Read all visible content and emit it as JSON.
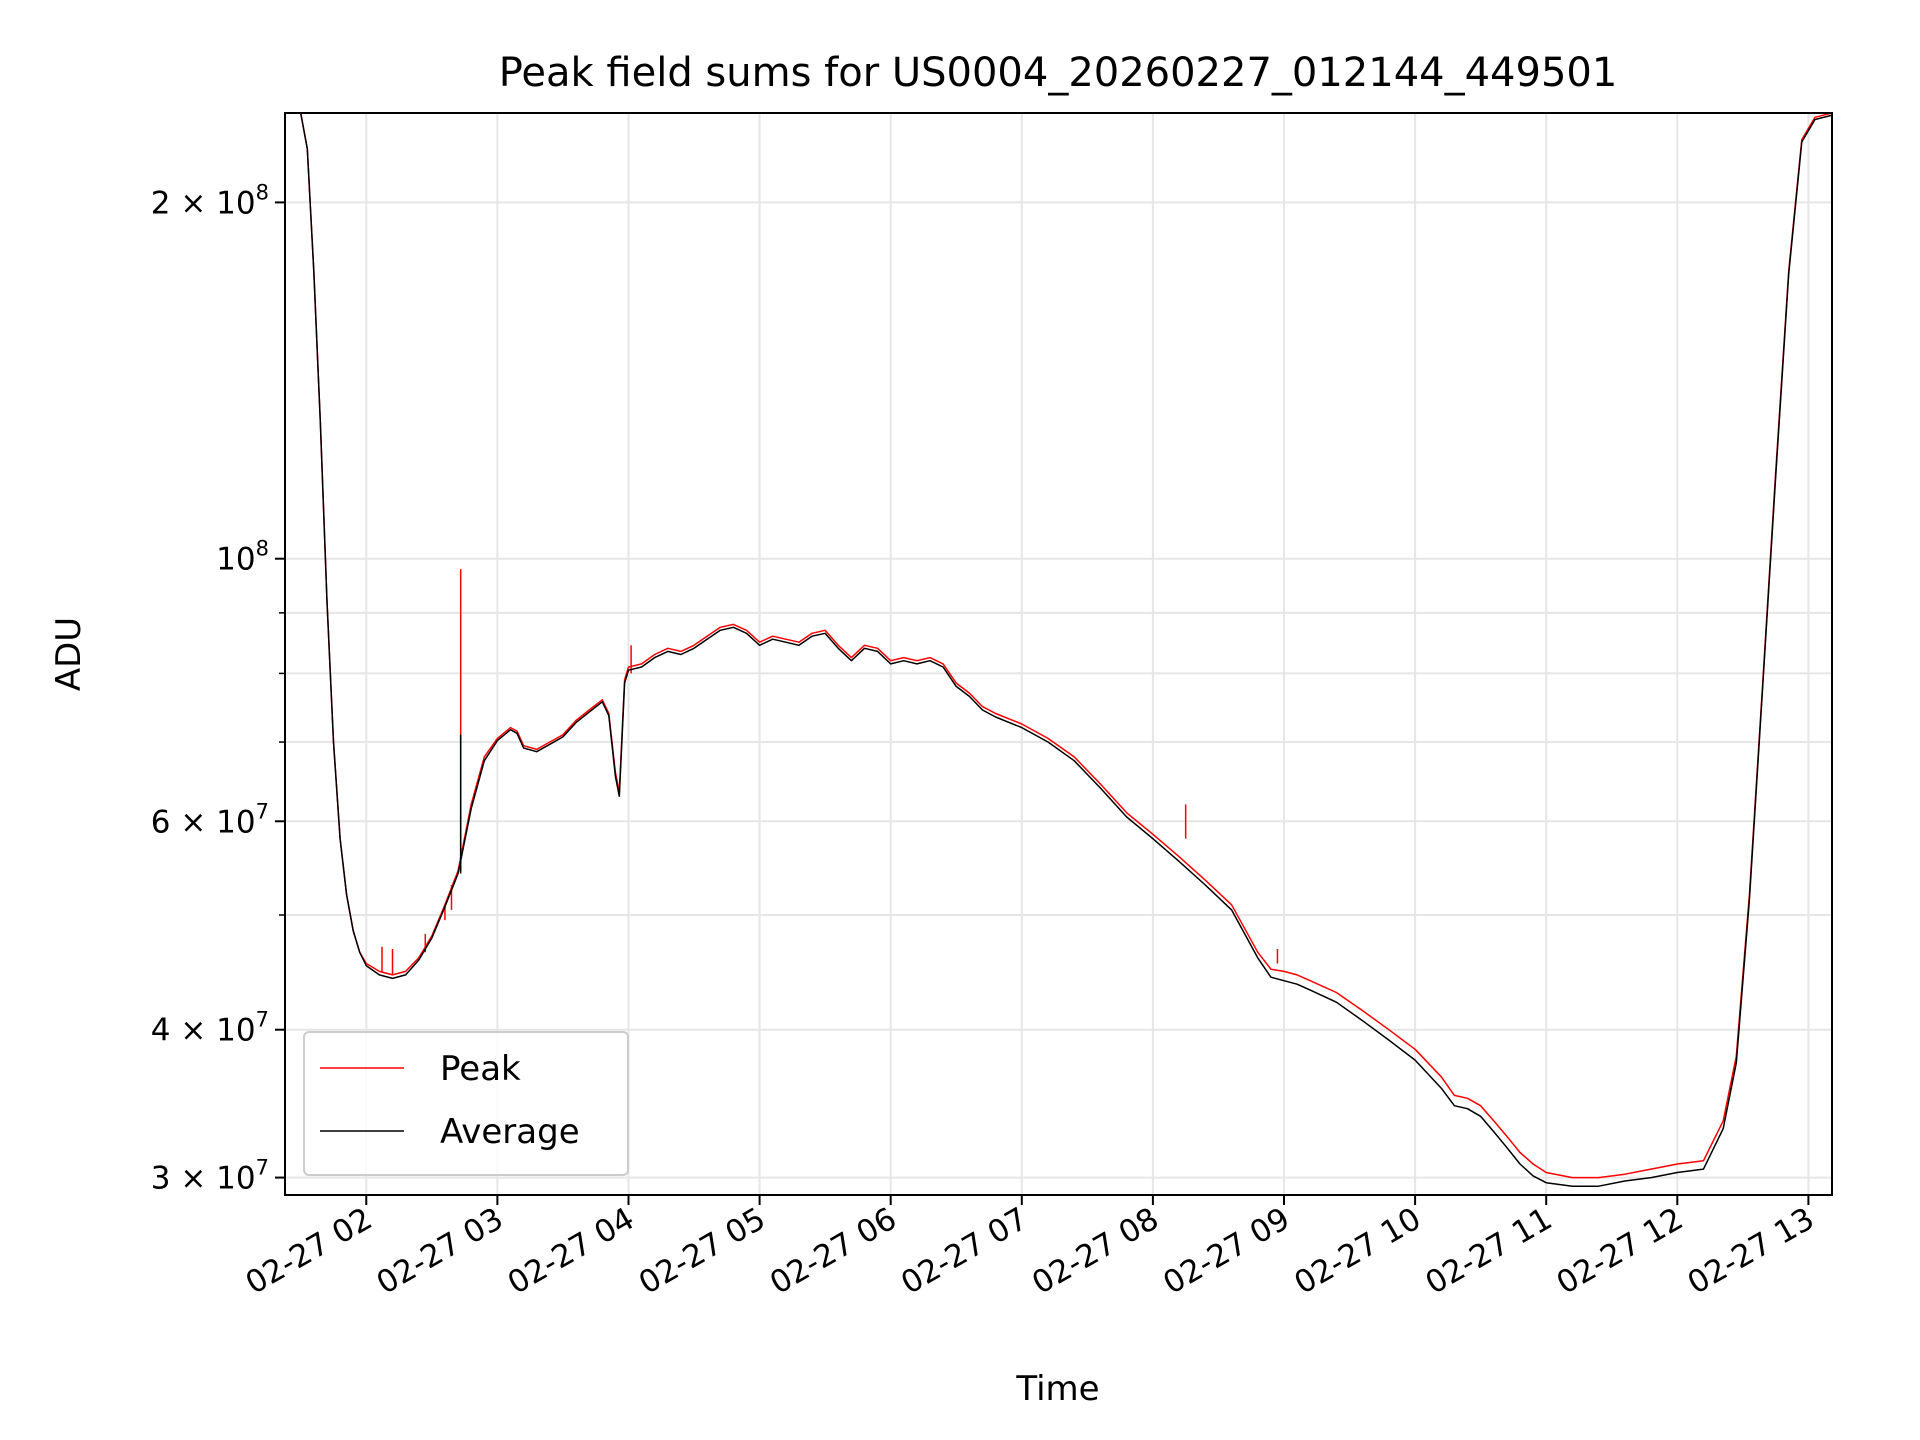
{
  "chart_data": {
    "type": "line",
    "title": "Peak field sums for US0004_20260227_012144_449501",
    "xlabel": "Time",
    "ylabel": "ADU",
    "yscale": "log",
    "xlim": [
      1.38,
      13.18
    ],
    "ylim": [
      29000000,
      238000000
    ],
    "grid": true,
    "legend_location": "lower-left",
    "x_unit": "hours since 2026-02-27 00:00",
    "x_ticks": [
      {
        "value": 2,
        "label": "02-27 02"
      },
      {
        "value": 3,
        "label": "02-27 03"
      },
      {
        "value": 4,
        "label": "02-27 04"
      },
      {
        "value": 5,
        "label": "02-27 05"
      },
      {
        "value": 6,
        "label": "02-27 06"
      },
      {
        "value": 7,
        "label": "02-27 07"
      },
      {
        "value": 8,
        "label": "02-27 08"
      },
      {
        "value": 9,
        "label": "02-27 09"
      },
      {
        "value": 10,
        "label": "02-27 10"
      },
      {
        "value": 11,
        "label": "02-27 11"
      },
      {
        "value": 12,
        "label": "02-27 12"
      },
      {
        "value": 13,
        "label": "02-27 13"
      }
    ],
    "y_ticks": [
      {
        "value": 30000000,
        "mantissa": "3",
        "exponent": "7"
      },
      {
        "value": 40000000,
        "mantissa": "4",
        "exponent": "7"
      },
      {
        "value": 60000000,
        "mantissa": "6",
        "exponent": "7"
      },
      {
        "value": 100000000,
        "mantissa": "",
        "exponent": "8"
      },
      {
        "value": 200000000,
        "mantissa": "2",
        "exponent": "8"
      }
    ],
    "y_minor_ticks": [
      50000000,
      70000000,
      80000000,
      90000000
    ],
    "series": [
      {
        "name": "Peak",
        "color": "#ff0000",
        "x": [
          1.38,
          1.5,
          1.55,
          1.6,
          1.65,
          1.7,
          1.75,
          1.8,
          1.85,
          1.9,
          1.95,
          2.0,
          2.1,
          2.2,
          2.3,
          2.4,
          2.5,
          2.6,
          2.7,
          2.8,
          2.9,
          3.0,
          3.1,
          3.15,
          3.2,
          3.3,
          3.4,
          3.5,
          3.6,
          3.7,
          3.8,
          3.85,
          3.9,
          3.93,
          3.97,
          4.0,
          4.1,
          4.2,
          4.3,
          4.4,
          4.5,
          4.6,
          4.7,
          4.8,
          4.9,
          5.0,
          5.1,
          5.2,
          5.3,
          5.4,
          5.5,
          5.6,
          5.7,
          5.8,
          5.9,
          6.0,
          6.1,
          6.2,
          6.3,
          6.4,
          6.5,
          6.6,
          6.7,
          6.8,
          7.0,
          7.2,
          7.4,
          7.6,
          7.8,
          8.0,
          8.2,
          8.4,
          8.6,
          8.8,
          8.9,
          9.0,
          9.1,
          9.2,
          9.4,
          9.6,
          9.8,
          10.0,
          10.2,
          10.3,
          10.4,
          10.5,
          10.6,
          10.7,
          10.8,
          10.9,
          11.0,
          11.2,
          11.4,
          11.6,
          11.8,
          12.0,
          12.2,
          12.35,
          12.45,
          12.55,
          12.65,
          12.75,
          12.85,
          12.95,
          13.05,
          13.18
        ],
        "values": [
          238000000,
          238000000,
          222000000,
          175000000,
          130000000,
          92000000,
          70000000,
          58000000,
          52000000,
          48500000,
          46500000,
          45500000,
          44800000,
          44500000,
          44800000,
          46000000,
          48000000,
          51000000,
          54500000,
          62000000,
          68000000,
          70500000,
          72000000,
          71500000,
          69500000,
          69000000,
          70000000,
          71000000,
          73000000,
          74500000,
          76000000,
          74000000,
          66000000,
          63500000,
          79000000,
          81000000,
          81500000,
          83000000,
          84000000,
          83500000,
          84500000,
          86000000,
          87500000,
          88000000,
          87000000,
          85000000,
          86000000,
          85500000,
          85000000,
          86500000,
          87000000,
          84500000,
          82500000,
          84500000,
          84000000,
          82000000,
          82500000,
          82000000,
          82500000,
          81500000,
          78500000,
          77000000,
          75000000,
          74000000,
          72500000,
          70500000,
          68000000,
          64500000,
          61000000,
          58500000,
          56000000,
          53500000,
          51000000,
          46500000,
          45000000,
          44800000,
          44500000,
          44000000,
          43000000,
          41500000,
          40000000,
          38500000,
          36500000,
          35200000,
          35000000,
          34500000,
          33500000,
          32500000,
          31500000,
          30800000,
          30300000,
          30000000,
          30000000,
          30200000,
          30500000,
          30800000,
          31000000,
          33500000,
          38000000,
          52000000,
          78000000,
          118000000,
          175000000,
          226000000,
          236000000,
          238000000
        ],
        "spikes": [
          {
            "x": 2.12,
            "base": 44800000,
            "top": 47000000
          },
          {
            "x": 2.2,
            "base": 44500000,
            "top": 46800000
          },
          {
            "x": 2.45,
            "base": 46500000,
            "top": 48200000
          },
          {
            "x": 2.6,
            "base": 49500000,
            "top": 51000000
          },
          {
            "x": 2.65,
            "base": 50500000,
            "top": 53000000
          },
          {
            "x": 2.72,
            "base": 54500000,
            "top": 98000000
          },
          {
            "x": 4.02,
            "base": 80000000,
            "top": 84500000
          },
          {
            "x": 8.25,
            "base": 58000000,
            "top": 62000000
          },
          {
            "x": 8.95,
            "base": 45500000,
            "top": 46800000
          }
        ]
      },
      {
        "name": "Average",
        "color": "#000000",
        "x": [
          1.38,
          1.5,
          1.55,
          1.6,
          1.65,
          1.7,
          1.75,
          1.8,
          1.85,
          1.9,
          1.95,
          2.0,
          2.1,
          2.2,
          2.3,
          2.4,
          2.5,
          2.6,
          2.7,
          2.8,
          2.9,
          3.0,
          3.1,
          3.15,
          3.2,
          3.3,
          3.4,
          3.5,
          3.6,
          3.7,
          3.8,
          3.85,
          3.9,
          3.93,
          3.97,
          4.0,
          4.1,
          4.2,
          4.3,
          4.4,
          4.5,
          4.6,
          4.7,
          4.8,
          4.9,
          5.0,
          5.1,
          5.2,
          5.3,
          5.4,
          5.5,
          5.6,
          5.7,
          5.8,
          5.9,
          6.0,
          6.1,
          6.2,
          6.3,
          6.4,
          6.5,
          6.6,
          6.7,
          6.8,
          7.0,
          7.2,
          7.4,
          7.6,
          7.8,
          8.0,
          8.2,
          8.4,
          8.6,
          8.8,
          8.9,
          9.0,
          9.1,
          9.2,
          9.4,
          9.6,
          9.8,
          10.0,
          10.2,
          10.3,
          10.4,
          10.5,
          10.6,
          10.7,
          10.8,
          10.9,
          11.0,
          11.2,
          11.4,
          11.6,
          11.8,
          12.0,
          12.2,
          12.35,
          12.45,
          12.55,
          12.65,
          12.75,
          12.85,
          12.95,
          13.05,
          13.18
        ],
        "values": [
          238000000,
          238000000,
          222000000,
          175000000,
          130000000,
          92000000,
          70000000,
          58000000,
          52000000,
          48500000,
          46500000,
          45300000,
          44500000,
          44200000,
          44500000,
          45800000,
          47800000,
          50800000,
          54200000,
          61500000,
          67500000,
          70200000,
          71700000,
          71200000,
          69200000,
          68700000,
          69700000,
          70700000,
          72700000,
          74200000,
          75700000,
          73700000,
          65500000,
          63000000,
          78500000,
          80500000,
          81000000,
          82500000,
          83500000,
          83000000,
          84000000,
          85500000,
          87000000,
          87500000,
          86500000,
          84500000,
          85500000,
          85000000,
          84500000,
          86000000,
          86500000,
          84000000,
          82000000,
          84000000,
          83500000,
          81500000,
          82000000,
          81500000,
          82000000,
          81000000,
          78000000,
          76500000,
          74500000,
          73500000,
          72000000,
          70000000,
          67500000,
          64000000,
          60500000,
          58000000,
          55500000,
          53000000,
          50500000,
          46000000,
          44300000,
          44000000,
          43700000,
          43200000,
          42200000,
          40700000,
          39200000,
          37700000,
          35700000,
          34500000,
          34300000,
          33800000,
          32800000,
          31800000,
          30800000,
          30100000,
          29700000,
          29500000,
          29500000,
          29800000,
          30000000,
          30300000,
          30500000,
          33000000,
          37500000,
          51500000,
          77500000,
          117000000,
          174000000,
          225000000,
          235000000,
          237000000
        ],
        "spikes": [
          {
            "x": 2.72,
            "base": 54200000,
            "top": 71000000
          }
        ]
      }
    ]
  }
}
